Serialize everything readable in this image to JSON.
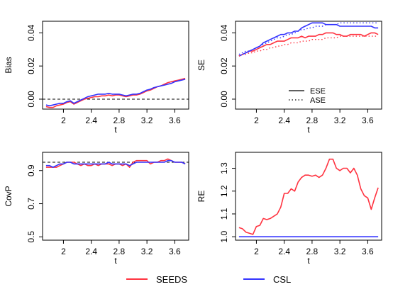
{
  "colors": {
    "seeds": "#ff3340",
    "csl": "#3333ff",
    "axis": "#000000",
    "ref": "#000000"
  },
  "legend": {
    "position": "bottom-center",
    "items": [
      {
        "label": "SEEDS",
        "color": "#ff3340"
      },
      {
        "label": "CSL",
        "color": "#3333ff"
      }
    ]
  },
  "chart_data": [
    {
      "type": "line",
      "title": "",
      "xlabel": "t",
      "ylabel": "Bias",
      "xlim": [
        1.7,
        3.8
      ],
      "ylim": [
        -0.006,
        0.047
      ],
      "x_ticks": [
        "2",
        "2.4",
        "2.8",
        "3.2",
        "3.6"
      ],
      "y_ticks": [
        "0.00",
        "0.02",
        "0.04"
      ],
      "reference_line": {
        "y": 0,
        "style": "dashed"
      },
      "x": [
        1.75,
        1.8,
        1.85,
        1.9,
        1.95,
        2.0,
        2.05,
        2.1,
        2.15,
        2.2,
        2.25,
        2.3,
        2.35,
        2.4,
        2.45,
        2.5,
        2.55,
        2.6,
        2.65,
        2.7,
        2.75,
        2.8,
        2.85,
        2.9,
        2.95,
        3.0,
        3.05,
        3.1,
        3.15,
        3.2,
        3.25,
        3.3,
        3.35,
        3.4,
        3.45,
        3.5,
        3.55,
        3.6,
        3.65,
        3.7,
        3.75
      ],
      "series": [
        {
          "name": "SEEDS",
          "color": "#ff3340",
          "style": "solid",
          "values": [
            -0.0045,
            -0.005,
            -0.005,
            -0.004,
            -0.0035,
            -0.003,
            -0.002,
            -0.0015,
            -0.003,
            -0.002,
            -0.001,
            0.0,
            0.0005,
            0.001,
            0.0015,
            0.0015,
            0.002,
            0.002,
            0.0025,
            0.002,
            0.0025,
            0.0025,
            0.002,
            0.0015,
            0.002,
            0.0025,
            0.0025,
            0.003,
            0.004,
            0.005,
            0.0055,
            0.0065,
            0.0075,
            0.008,
            0.009,
            0.01,
            0.0105,
            0.011,
            0.0115,
            0.012,
            0.0125
          ]
        },
        {
          "name": "CSL",
          "color": "#3333ff",
          "style": "solid",
          "values": [
            -0.0035,
            -0.004,
            -0.0035,
            -0.003,
            -0.0025,
            -0.0025,
            -0.0015,
            -0.001,
            -0.0025,
            -0.0015,
            -0.0005,
            0.0005,
            0.0015,
            0.002,
            0.0025,
            0.003,
            0.003,
            0.003,
            0.0035,
            0.003,
            0.003,
            0.003,
            0.0025,
            0.002,
            0.0025,
            0.003,
            0.003,
            0.0035,
            0.0045,
            0.0055,
            0.006,
            0.007,
            0.0075,
            0.008,
            0.0085,
            0.009,
            0.0095,
            0.0105,
            0.011,
            0.0115,
            0.012
          ]
        }
      ]
    },
    {
      "type": "line",
      "title": "",
      "xlabel": "t",
      "ylabel": "SE",
      "xlim": [
        1.7,
        3.8
      ],
      "ylim": [
        -0.006,
        0.047
      ],
      "x_ticks": [
        "2",
        "2.4",
        "2.8",
        "3.2",
        "3.6"
      ],
      "y_ticks": [
        "0.00",
        "0.02",
        "0.04"
      ],
      "legend": {
        "position": "bottom-right",
        "items": [
          {
            "label": "ESE",
            "style": "solid"
          },
          {
            "label": "ASE",
            "style": "dotted"
          }
        ]
      },
      "x": [
        1.75,
        1.8,
        1.85,
        1.9,
        1.95,
        2.0,
        2.05,
        2.1,
        2.15,
        2.2,
        2.25,
        2.3,
        2.35,
        2.4,
        2.45,
        2.5,
        2.55,
        2.6,
        2.65,
        2.7,
        2.75,
        2.8,
        2.85,
        2.9,
        2.95,
        3.0,
        3.05,
        3.1,
        3.15,
        3.2,
        3.25,
        3.3,
        3.35,
        3.4,
        3.45,
        3.5,
        3.55,
        3.6,
        3.65,
        3.7,
        3.75
      ],
      "series": [
        {
          "name": "SEEDS ESE",
          "color": "#ff3340",
          "style": "solid",
          "values": [
            0.026,
            0.027,
            0.028,
            0.029,
            0.029,
            0.03,
            0.031,
            0.032,
            0.033,
            0.033,
            0.034,
            0.035,
            0.035,
            0.035,
            0.036,
            0.037,
            0.037,
            0.037,
            0.038,
            0.037,
            0.038,
            0.038,
            0.038,
            0.039,
            0.039,
            0.04,
            0.04,
            0.04,
            0.039,
            0.039,
            0.038,
            0.038,
            0.039,
            0.039,
            0.039,
            0.039,
            0.038,
            0.039,
            0.04,
            0.04,
            0.039
          ]
        },
        {
          "name": "CSL ESE",
          "color": "#3333ff",
          "style": "solid",
          "values": [
            0.026,
            0.027,
            0.028,
            0.029,
            0.03,
            0.031,
            0.032,
            0.034,
            0.035,
            0.036,
            0.037,
            0.038,
            0.039,
            0.039,
            0.04,
            0.04,
            0.041,
            0.041,
            0.043,
            0.044,
            0.045,
            0.046,
            0.046,
            0.046,
            0.046,
            0.045,
            0.045,
            0.045,
            0.045,
            0.044,
            0.044,
            0.044,
            0.044,
            0.044,
            0.044,
            0.044,
            0.044,
            0.044,
            0.044,
            0.043,
            0.043
          ]
        },
        {
          "name": "SEEDS ASE",
          "color": "#ff3340",
          "style": "dotted",
          "values": [
            0.026,
            0.027,
            0.027,
            0.028,
            0.028,
            0.029,
            0.029,
            0.03,
            0.03,
            0.031,
            0.031,
            0.032,
            0.032,
            0.033,
            0.033,
            0.034,
            0.034,
            0.034,
            0.035,
            0.035,
            0.035,
            0.036,
            0.036,
            0.036,
            0.036,
            0.037,
            0.037,
            0.037,
            0.037,
            0.038,
            0.038,
            0.038,
            0.038,
            0.038,
            0.038,
            0.038,
            0.038,
            0.038,
            0.038,
            0.038,
            0.038
          ]
        },
        {
          "name": "CSL ASE",
          "color": "#3333ff",
          "style": "dotted",
          "values": [
            0.027,
            0.028,
            0.029,
            0.029,
            0.03,
            0.031,
            0.032,
            0.033,
            0.034,
            0.035,
            0.036,
            0.037,
            0.037,
            0.038,
            0.039,
            0.039,
            0.04,
            0.041,
            0.042,
            0.042,
            0.043,
            0.043,
            0.044,
            0.044,
            0.044,
            0.045,
            0.045,
            0.045,
            0.045,
            0.046,
            0.046,
            0.046,
            0.046,
            0.046,
            0.046,
            0.046,
            0.046,
            0.046,
            0.046,
            0.046,
            0.046
          ]
        }
      ]
    },
    {
      "type": "line",
      "title": "",
      "xlabel": "t",
      "ylabel": "CovP",
      "xlim": [
        1.7,
        3.8
      ],
      "ylim": [
        0.48,
        1.01
      ],
      "x_ticks": [
        "2",
        "2.4",
        "2.8",
        "3.2",
        "3.6"
      ],
      "y_ticks": [
        "0.5",
        "0.7",
        "0.9"
      ],
      "reference_line": {
        "y": 0.95,
        "style": "dashed"
      },
      "x": [
        1.75,
        1.8,
        1.85,
        1.9,
        1.95,
        2.0,
        2.05,
        2.1,
        2.15,
        2.2,
        2.25,
        2.3,
        2.35,
        2.4,
        2.45,
        2.5,
        2.55,
        2.6,
        2.65,
        2.7,
        2.75,
        2.8,
        2.85,
        2.9,
        2.95,
        3.0,
        3.05,
        3.1,
        3.15,
        3.2,
        3.25,
        3.3,
        3.35,
        3.4,
        3.45,
        3.5,
        3.55,
        3.6,
        3.65,
        3.7,
        3.75
      ],
      "series": [
        {
          "name": "SEEDS",
          "color": "#ff3340",
          "style": "solid",
          "values": [
            0.92,
            0.92,
            0.92,
            0.92,
            0.93,
            0.94,
            0.95,
            0.95,
            0.95,
            0.94,
            0.93,
            0.94,
            0.93,
            0.93,
            0.94,
            0.93,
            0.94,
            0.94,
            0.94,
            0.93,
            0.94,
            0.94,
            0.93,
            0.94,
            0.92,
            0.95,
            0.96,
            0.96,
            0.96,
            0.96,
            0.94,
            0.95,
            0.95,
            0.96,
            0.96,
            0.97,
            0.96,
            0.95,
            0.95,
            0.95,
            0.94
          ]
        },
        {
          "name": "CSL",
          "color": "#3333ff",
          "style": "solid",
          "values": [
            0.93,
            0.93,
            0.92,
            0.93,
            0.94,
            0.94,
            0.95,
            0.95,
            0.94,
            0.94,
            0.94,
            0.94,
            0.94,
            0.94,
            0.94,
            0.94,
            0.94,
            0.94,
            0.95,
            0.94,
            0.94,
            0.94,
            0.94,
            0.94,
            0.93,
            0.94,
            0.95,
            0.95,
            0.95,
            0.95,
            0.95,
            0.95,
            0.95,
            0.95,
            0.95,
            0.96,
            0.96,
            0.95,
            0.95,
            0.95,
            0.94
          ]
        }
      ]
    },
    {
      "type": "line",
      "title": "",
      "xlabel": "t",
      "ylabel": "RE",
      "xlim": [
        1.7,
        3.8
      ],
      "ylim": [
        0.985,
        1.37
      ],
      "x_ticks": [
        "2",
        "2.4",
        "2.8",
        "3.2",
        "3.6"
      ],
      "y_ticks": [
        "1.0",
        "1.1",
        "1.2",
        "1.3"
      ],
      "x": [
        1.75,
        1.8,
        1.85,
        1.9,
        1.95,
        2.0,
        2.05,
        2.1,
        2.15,
        2.2,
        2.25,
        2.3,
        2.35,
        2.4,
        2.45,
        2.5,
        2.55,
        2.6,
        2.65,
        2.7,
        2.75,
        2.8,
        2.85,
        2.9,
        2.95,
        3.0,
        3.05,
        3.1,
        3.15,
        3.2,
        3.25,
        3.3,
        3.35,
        3.4,
        3.45,
        3.5,
        3.55,
        3.6,
        3.65,
        3.7,
        3.75
      ],
      "series": [
        {
          "name": "SEEDS",
          "color": "#ff3340",
          "style": "solid",
          "values": [
            1.04,
            1.035,
            1.02,
            1.015,
            1.01,
            1.045,
            1.05,
            1.08,
            1.075,
            1.08,
            1.09,
            1.1,
            1.13,
            1.19,
            1.19,
            1.21,
            1.2,
            1.24,
            1.26,
            1.27,
            1.27,
            1.265,
            1.27,
            1.26,
            1.27,
            1.3,
            1.34,
            1.34,
            1.3,
            1.29,
            1.3,
            1.3,
            1.28,
            1.3,
            1.27,
            1.21,
            1.18,
            1.17,
            1.12,
            1.17,
            1.215
          ]
        },
        {
          "name": "CSL",
          "color": "#3333ff",
          "style": "solid",
          "values": [
            1.0,
            1.0,
            1.0,
            1.0,
            1.0,
            1.0,
            1.0,
            1.0,
            1.0,
            1.0,
            1.0,
            1.0,
            1.0,
            1.0,
            1.0,
            1.0,
            1.0,
            1.0,
            1.0,
            1.0,
            1.0,
            1.0,
            1.0,
            1.0,
            1.0,
            1.0,
            1.0,
            1.0,
            1.0,
            1.0,
            1.0,
            1.0,
            1.0,
            1.0,
            1.0,
            1.0,
            1.0,
            1.0,
            1.0,
            1.0,
            1.0
          ]
        }
      ]
    }
  ]
}
